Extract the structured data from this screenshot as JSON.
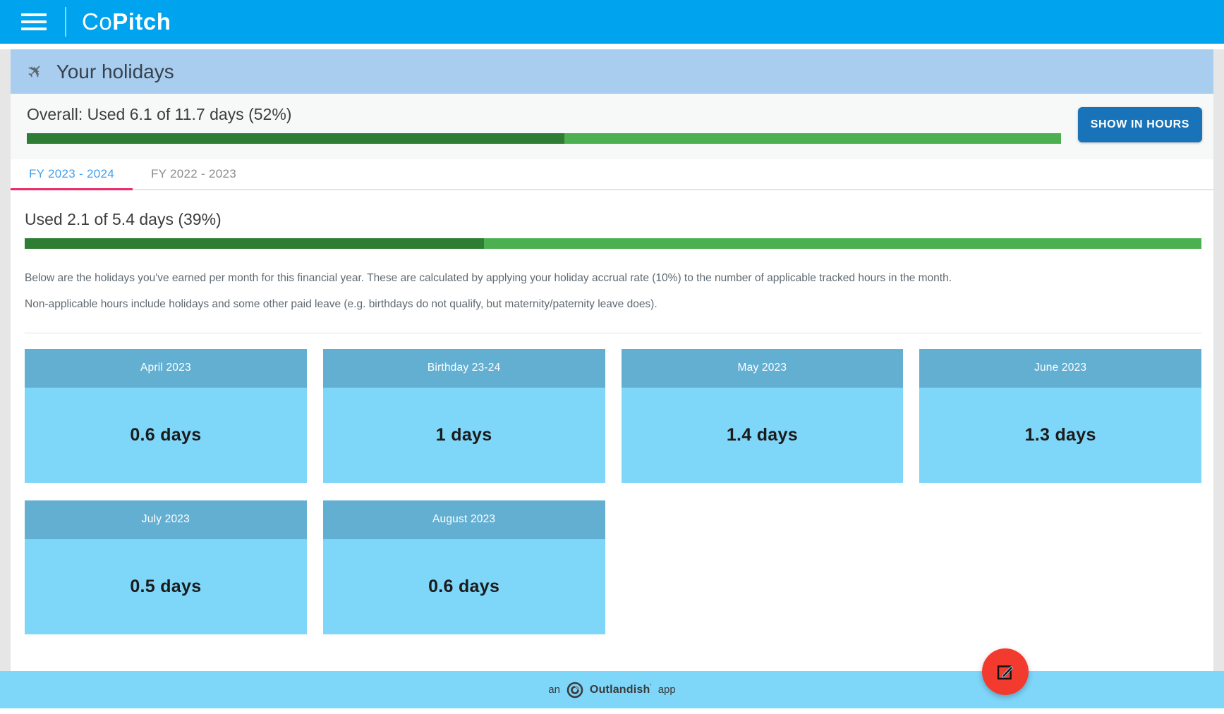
{
  "topbar": {
    "brand_light": "Co",
    "brand_bold": "Pitch"
  },
  "page": {
    "title": "Your holidays"
  },
  "overall": {
    "label": "Overall: Used 6.1 of 11.7 days (52%)",
    "percent": 52,
    "button_label": "SHOW IN HOURS"
  },
  "tabs": [
    {
      "label": "FY 2023 - 2024",
      "active": true
    },
    {
      "label": "FY 2022 - 2023",
      "active": false
    }
  ],
  "fy": {
    "usage_label": "Used 2.1 of 5.4 days (39%)",
    "percent": 39,
    "description_line1": "Below are the holidays you've earned per month for this financial year. These are calculated by applying your holiday accrual rate (10%) to the number of applicable tracked hours in the month.",
    "description_line2": "Non-applicable hours include holidays and some other paid leave (e.g. birthdays do not qualify, but maternity/paternity leave does)."
  },
  "cards": [
    {
      "title": "April 2023",
      "value": "0.6 days"
    },
    {
      "title": "Birthday 23-24",
      "value": "1 days"
    },
    {
      "title": "May 2023",
      "value": "1.4 days"
    },
    {
      "title": "June 2023",
      "value": "1.3 days"
    },
    {
      "title": "July 2023",
      "value": "0.5 days"
    },
    {
      "title": "August 2023",
      "value": "0.6 days"
    }
  ],
  "footer": {
    "prefix": "an",
    "brand": "Outlandish",
    "brand_mark": "’",
    "suffix": "app"
  },
  "icons": {
    "hamburger": "menu-icon",
    "plane": "✈",
    "edit": "edit-icon",
    "outlandish": "outlandish-logo"
  },
  "colors": {
    "topbar_blue": "#00a3ee",
    "band_blue": "#a9cdef",
    "button_blue": "#1873b9",
    "progress_dark_green": "#2e7d32",
    "progress_light_green": "#4caf50",
    "tab_active_blue": "#42a0ee",
    "tab_underline_pink": "#ec2a69",
    "card_header_blue": "#63afd2",
    "card_body_blue": "#7ed6f9",
    "footer_blue": "#7ed6f9",
    "fab_red": "#f23b2e"
  }
}
